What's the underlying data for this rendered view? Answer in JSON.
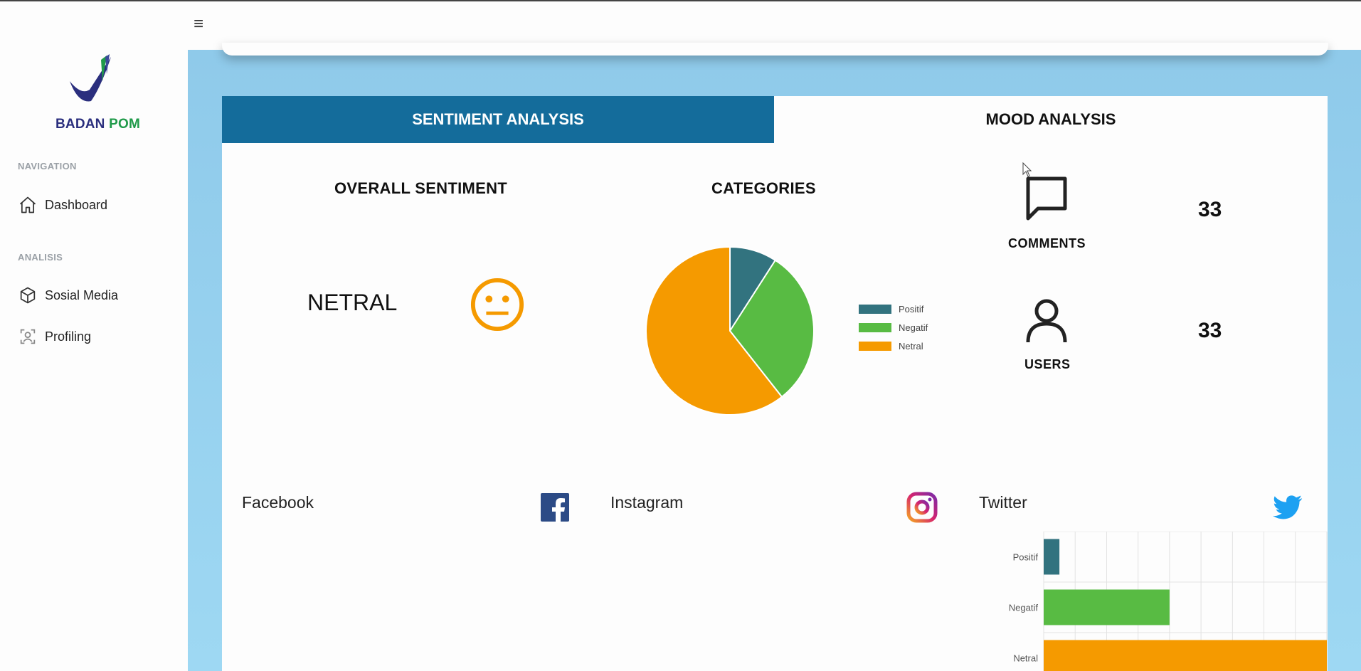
{
  "brand": {
    "part1": "BADAN",
    "part2": "POM"
  },
  "header": {
    "menu_icon": "hamburger-icon",
    "menu_glyph": "≡"
  },
  "sidebar": {
    "sections": [
      {
        "heading": "NAVIGATION",
        "items": [
          {
            "label": "Dashboard",
            "icon": "home-icon"
          }
        ]
      },
      {
        "heading": "ANALISIS",
        "items": [
          {
            "label": "Sosial Media",
            "icon": "cube-icon"
          },
          {
            "label": "Profiling",
            "icon": "profile-icon"
          }
        ]
      }
    ]
  },
  "tabs": [
    {
      "label": "SENTIMENT ANALYSIS",
      "active": true
    },
    {
      "label": "MOOD ANALYSIS",
      "active": false
    }
  ],
  "overall": {
    "title": "OVERALL SENTIMENT",
    "value": "NETRAL",
    "icon": "neutral-face-icon"
  },
  "categories": {
    "title": "CATEGORIES"
  },
  "stats": [
    {
      "label": "COMMENTS",
      "value": "33",
      "icon": "comment-icon"
    },
    {
      "label": "USERS",
      "value": "33",
      "icon": "user-icon"
    }
  ],
  "social": [
    {
      "label": "Facebook",
      "icon": "facebook-icon"
    },
    {
      "label": "Instagram",
      "icon": "instagram-icon"
    },
    {
      "label": "Twitter",
      "icon": "twitter-icon"
    }
  ],
  "colors": {
    "positif": "#32737f",
    "negatif": "#58bb43",
    "netral": "#f59a00",
    "tab_active": "#146c9b"
  },
  "chart_data": [
    {
      "type": "pie",
      "title": "CATEGORIES",
      "categories": [
        "Positif",
        "Negatif",
        "Netral"
      ],
      "values": [
        3,
        10,
        20
      ],
      "colors": [
        "#32737f",
        "#58bb43",
        "#f59a00"
      ],
      "legend": "right"
    },
    {
      "type": "bar",
      "orientation": "horizontal",
      "categories": [
        "Positif",
        "Negatif",
        "Netral"
      ],
      "values": [
        1,
        8,
        18
      ],
      "xlim": [
        0,
        18
      ],
      "grid": true,
      "colors": [
        "#32737f",
        "#58bb43",
        "#f59a00"
      ]
    }
  ]
}
